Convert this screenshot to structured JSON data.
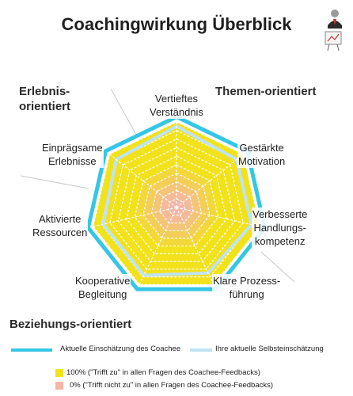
{
  "chart_data": {
    "type": "radar",
    "title": "Coachingwirkung Überblick",
    "axes": [
      "Vertieftes Verständnis",
      "Gestärkte Motivation",
      "Verbesserte Handlungs-kompetenz",
      "Klare Prozess-führung",
      "Kooperative Begleitung",
      "Aktivierte Ressourcen",
      "Einprägsame Erlebnisse"
    ],
    "axis_label_lines": [
      [
        "Vertieftes",
        "Verständnis"
      ],
      [
        "Gestärkte",
        "Motivation"
      ],
      [
        "Verbesserte",
        "Handlungs-",
        "kompetenz"
      ],
      [
        "Klare Prozess-",
        "führung"
      ],
      [
        "Kooperative",
        "Begleitung"
      ],
      [
        "Aktivierte",
        "Ressourcen"
      ],
      [
        "Einprägsame",
        "Erlebnisse"
      ]
    ],
    "groups": {
      "top_left": "Erlebnis-\norientiert",
      "top_right": "Themen-orientiert",
      "bottom": "Beziehungs-orientiert"
    },
    "scale": {
      "min": 0,
      "max": 100,
      "rings": 10
    },
    "series": [
      {
        "name": "Aktuelle Einschätzung des Coachee",
        "color": "#35c6e6",
        "values": [
          100,
          100,
          100,
          100,
          100,
          100,
          100
        ]
      },
      {
        "name": "Ihre aktuelle Selbsteinschätzung",
        "color": "#bfe3f2",
        "values": [
          95,
          90,
          90,
          85,
          88,
          88,
          90
        ]
      }
    ],
    "fill_legend": [
      {
        "label": "100% (\"Trifft zu\" in allen Fragen des Coachee-Feedbacks)",
        "color": "#f2e21c"
      },
      {
        "label": "0% (\"Trifft nicht zu\" in allen Fragen des Coachee-Feedbacks)",
        "color": "#f5b5a6"
      }
    ]
  },
  "icons": {
    "top_right_logo": "coach-person-icon"
  }
}
